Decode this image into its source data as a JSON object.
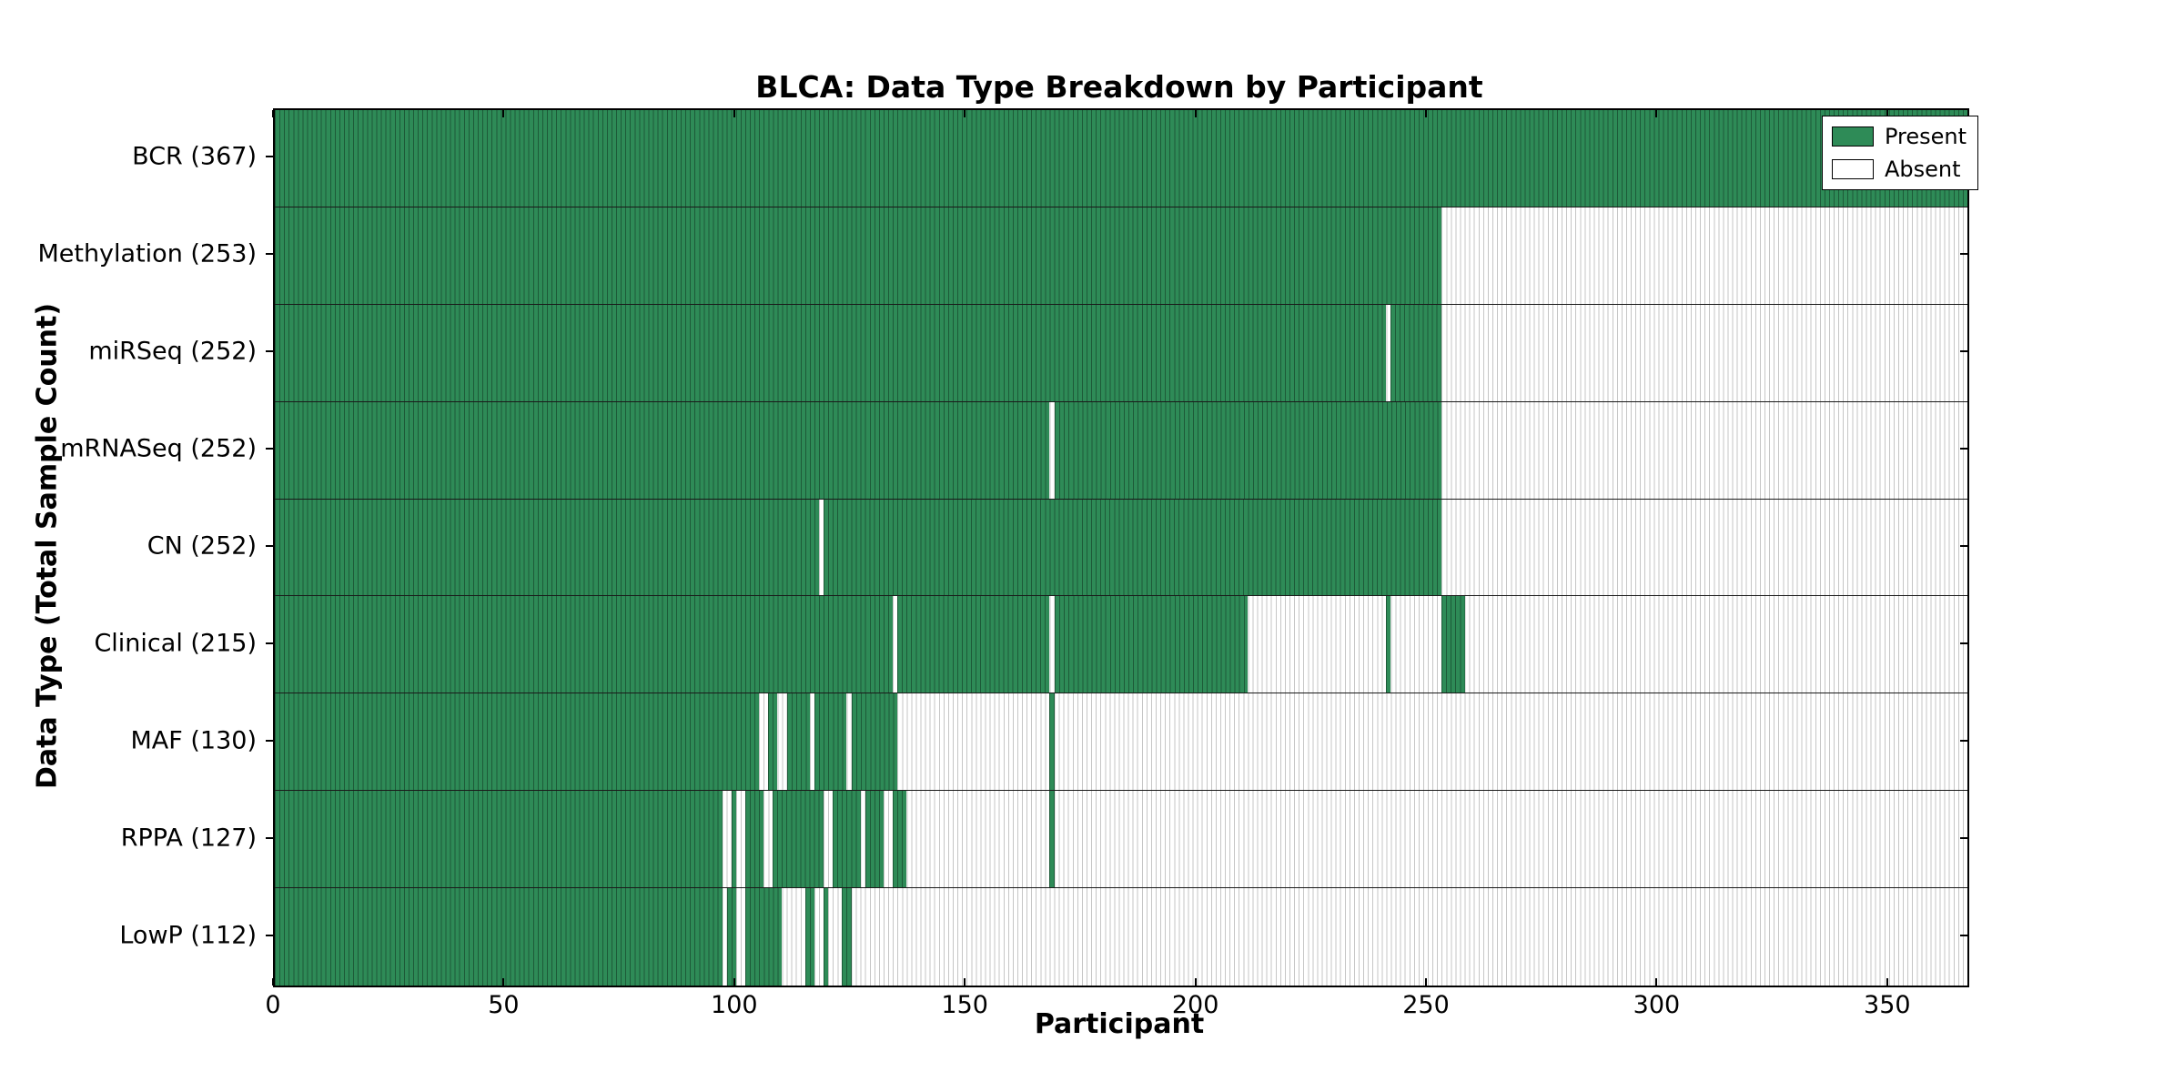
{
  "chart_data": {
    "type": "heatmap",
    "title": "BLCA: Data Type Breakdown by Participant",
    "xlabel": "Participant",
    "ylabel": "Data Type (Total Sample Count)",
    "x_ticks": [
      0,
      50,
      100,
      150,
      200,
      250,
      300,
      350
    ],
    "x_max": 367,
    "grid": false,
    "legend_position": "upper right",
    "legend": [
      {
        "label": "Present",
        "color": "#2E8B57"
      },
      {
        "label": "Absent",
        "color": "#FFFFFF"
      }
    ],
    "colors": {
      "present_fill": "#2E8B57",
      "present_edge": "#1D5A38",
      "absent_fill": "#FFFFFF",
      "absent_edge": "#C6C6C6",
      "row_divider": "#1A1A1A",
      "axis": "#000000"
    },
    "rows": [
      {
        "label": "BCR (367)",
        "data_type": "BCR",
        "total_samples": 367,
        "present_ranges": [
          [
            0,
            367
          ]
        ]
      },
      {
        "label": "Methylation (253)",
        "data_type": "Methylation",
        "total_samples": 253,
        "present_ranges": [
          [
            0,
            253
          ]
        ]
      },
      {
        "label": "miRSeq (252)",
        "data_type": "miRSeq",
        "total_samples": 252,
        "present_ranges": [
          [
            0,
            241
          ],
          [
            242,
            253
          ]
        ]
      },
      {
        "label": "mRNASeq (252)",
        "data_type": "mRNASeq",
        "total_samples": 252,
        "present_ranges": [
          [
            0,
            168
          ],
          [
            169,
            253
          ]
        ]
      },
      {
        "label": "CN (252)",
        "data_type": "CN",
        "total_samples": 252,
        "present_ranges": [
          [
            0,
            118
          ],
          [
            119,
            253
          ]
        ]
      },
      {
        "label": "Clinical (215)",
        "data_type": "Clinical",
        "total_samples": 215,
        "present_ranges": [
          [
            0,
            134
          ],
          [
            135,
            168
          ],
          [
            169,
            211
          ],
          [
            241,
            242
          ],
          [
            253,
            258
          ]
        ]
      },
      {
        "label": "MAF (130)",
        "data_type": "MAF",
        "total_samples": 130,
        "present_ranges": [
          [
            0,
            105
          ],
          [
            107,
            109
          ],
          [
            111,
            116
          ],
          [
            117,
            124
          ],
          [
            125,
            135
          ],
          [
            168,
            169
          ]
        ]
      },
      {
        "label": "RPPA (127)",
        "data_type": "RPPA",
        "total_samples": 127,
        "present_ranges": [
          [
            0,
            97
          ],
          [
            99,
            100
          ],
          [
            102,
            106
          ],
          [
            108,
            119
          ],
          [
            121,
            127
          ],
          [
            128,
            132
          ],
          [
            134,
            137
          ],
          [
            168,
            169
          ]
        ]
      },
      {
        "label": "LowP (112)",
        "data_type": "LowP",
        "total_samples": 112,
        "present_ranges": [
          [
            0,
            97
          ],
          [
            98,
            100
          ],
          [
            102,
            110
          ],
          [
            115,
            117
          ],
          [
            119,
            120
          ],
          [
            123,
            125
          ]
        ]
      }
    ]
  }
}
